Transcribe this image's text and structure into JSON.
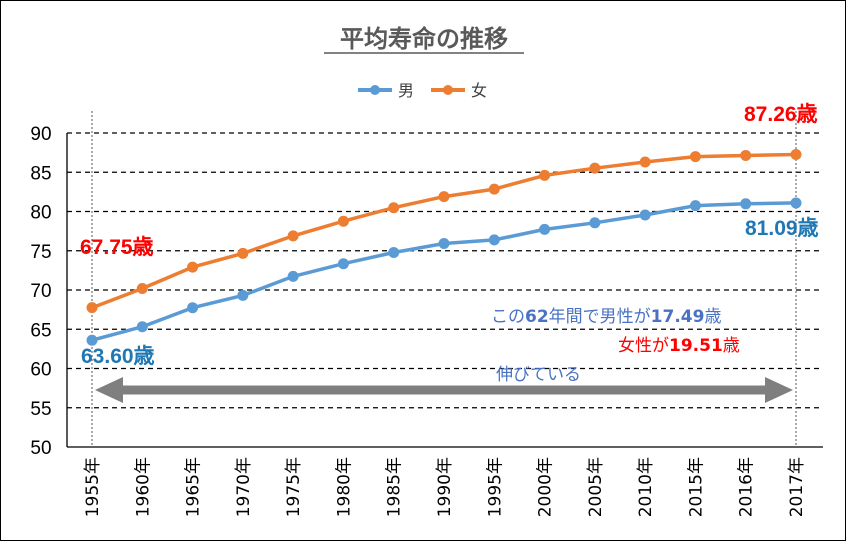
{
  "chart_data": {
    "type": "line",
    "title": "平均寿命の推移",
    "categories": [
      "1955年",
      "1960年",
      "1965年",
      "1970年",
      "1975年",
      "1980年",
      "1985年",
      "1990年",
      "1995年",
      "2000年",
      "2005年",
      "2010年",
      "2015年",
      "2016年",
      "2017年"
    ],
    "series": [
      {
        "name": "男",
        "color": "#5b9bd5",
        "values": [
          63.6,
          65.32,
          67.74,
          69.31,
          71.73,
          73.35,
          74.78,
          75.92,
          76.38,
          77.72,
          78.56,
          79.55,
          80.75,
          80.98,
          81.09
        ]
      },
      {
        "name": "女",
        "color": "#ed7d31",
        "values": [
          67.75,
          70.19,
          72.92,
          74.66,
          76.89,
          78.76,
          80.48,
          81.9,
          82.85,
          84.6,
          85.52,
          86.3,
          86.99,
          87.14,
          87.26
        ]
      }
    ],
    "ylim": [
      50,
      90
    ],
    "yticks": [
      50,
      55,
      60,
      65,
      70,
      75,
      80,
      85,
      90
    ],
    "grid": true,
    "legend": "top-center",
    "annotations": {
      "female_start": "67.75歳",
      "female_end": "87.26歳",
      "male_start": "63.60歳",
      "male_end": "81.09歳",
      "note_line1_prefix": "この",
      "note_line1_num1": "62",
      "note_line1_mid": "年間で男性が",
      "note_line1_num2": "17.49",
      "note_line1_suffix": "歳",
      "note_line2_prefix": "女性が",
      "note_line2_num": "19.51",
      "note_line2_suffix": "歳",
      "note_line3": "伸びている"
    }
  }
}
